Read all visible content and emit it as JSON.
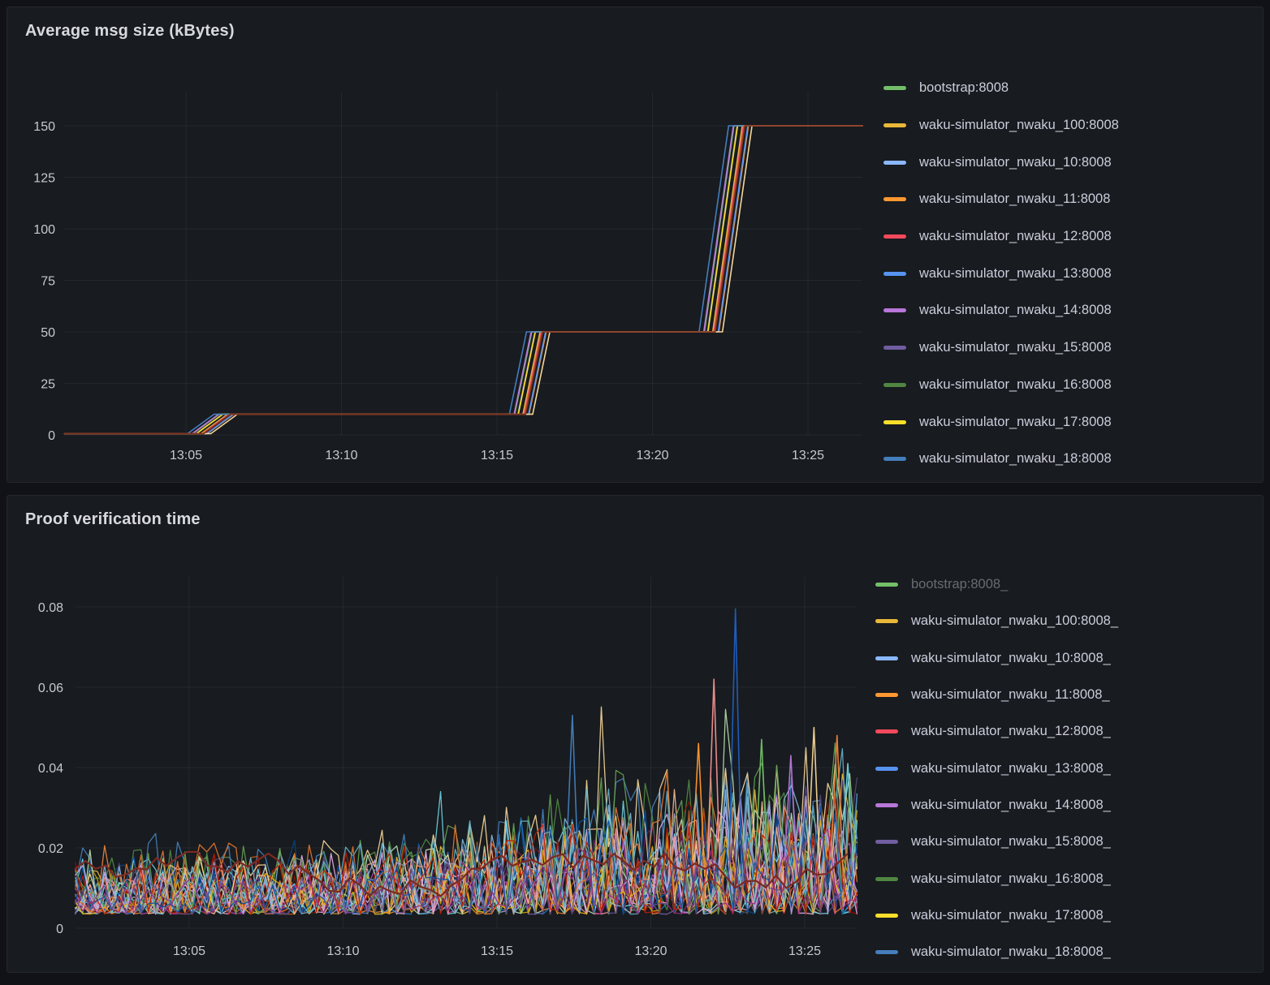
{
  "page": {
    "background": "#111217",
    "panel_background": "#181b1f"
  },
  "chart_data": [
    {
      "type": "line",
      "style": "stepped",
      "title": "Average msg size (kBytes)",
      "x_time_base": "13:00",
      "x_ticks": [
        {
          "label": "13:05",
          "minute": 5
        },
        {
          "label": "13:10",
          "minute": 10
        },
        {
          "label": "13:15",
          "minute": 15
        },
        {
          "label": "13:20",
          "minute": 20
        },
        {
          "label": "13:25",
          "minute": 25
        }
      ],
      "y_ticks": [
        0,
        25,
        50,
        75,
        100,
        125,
        150
      ],
      "ylim": [
        0,
        165
      ],
      "x_range_minutes": [
        1.1,
        26.75
      ],
      "grid": true,
      "legend_position": "right",
      "step_points": {
        "minutes": [
          1.1,
          5.5,
          6.35,
          15.85,
          16.4,
          21.95,
          22.9,
          26.75
        ],
        "values": [
          0.6,
          0.6,
          10,
          10,
          50,
          50,
          150,
          150
        ]
      },
      "series_jitter_minutes": 0.22,
      "jitter_overrides": {
        "#447EBC": -0.45,
        "#F4D598": 0.3,
        "#B877D9": -0.3,
        "#73BF69": -0.28
      },
      "draw_order_colors": [
        "#73BF69",
        "#EAB839",
        "#8AB8FF",
        "#FF9830",
        "#F2495C",
        "#5794F2",
        "#B877D9",
        "#705DA0",
        "#508642",
        "#FADE2A",
        "#447EBC",
        "#F4D598",
        "#C15C17",
        "#7E2F21"
      ],
      "legend": [
        {
          "label": "bootstrap:8008",
          "color": "#73BF69",
          "dimmed": false
        },
        {
          "label": "waku-simulator_nwaku_100:8008",
          "color": "#EAB839",
          "dimmed": false
        },
        {
          "label": "waku-simulator_nwaku_10:8008",
          "color": "#8AB8FF",
          "dimmed": false
        },
        {
          "label": "waku-simulator_nwaku_11:8008",
          "color": "#FF9830",
          "dimmed": false
        },
        {
          "label": "waku-simulator_nwaku_12:8008",
          "color": "#F2495C",
          "dimmed": false
        },
        {
          "label": "waku-simulator_nwaku_13:8008",
          "color": "#5794F2",
          "dimmed": false
        },
        {
          "label": "waku-simulator_nwaku_14:8008",
          "color": "#B877D9",
          "dimmed": false
        },
        {
          "label": "waku-simulator_nwaku_15:8008",
          "color": "#705DA0",
          "dimmed": false
        },
        {
          "label": "waku-simulator_nwaku_16:8008",
          "color": "#508642",
          "dimmed": false
        },
        {
          "label": "waku-simulator_nwaku_17:8008",
          "color": "#FADE2A",
          "dimmed": false
        },
        {
          "label": "waku-simulator_nwaku_18:8008",
          "color": "#447EBC",
          "dimmed": false
        }
      ]
    },
    {
      "type": "line",
      "title": "Proof verification time",
      "x_time_base": "13:00",
      "x_ticks": [
        {
          "label": "13:05",
          "minute": 5
        },
        {
          "label": "13:10",
          "minute": 10
        },
        {
          "label": "13:15",
          "minute": 15
        },
        {
          "label": "13:20",
          "minute": 20
        },
        {
          "label": "13:25",
          "minute": 25
        }
      ],
      "y_ticks": [
        0,
        0.02,
        0.04,
        0.06,
        0.08
      ],
      "ylim": [
        0,
        0.0855
      ],
      "x_range_minutes": [
        1.3,
        26.7
      ],
      "grid": true,
      "legend_position": "right",
      "noise": {
        "seed": 11,
        "series_count": 32,
        "points": 108,
        "y_min": 0.0035,
        "skew": 1.7,
        "amp_min": 0.5,
        "overshoot_p": 0.018,
        "overshoot_gain": 1.3,
        "envelope_minutes": [
          1.3,
          8,
          12,
          15,
          17,
          19,
          21,
          23,
          26.7
        ],
        "envelope_max": [
          0.022,
          0.024,
          0.026,
          0.031,
          0.037,
          0.04,
          0.044,
          0.046,
          0.05
        ]
      },
      "palette": [
        "#7EB26D",
        "#EAB839",
        "#6ED0E0",
        "#EF843C",
        "#E24D42",
        "#1F78C1",
        "#BA43A9",
        "#705DA0",
        "#508642",
        "#CCA300",
        "#447EBC",
        "#C15C17",
        "#890F02",
        "#0A437C",
        "#6D1F62",
        "#584477",
        "#B7DBAB",
        "#F4D598",
        "#70DBED",
        "#F9BA8F",
        "#F29191",
        "#82B5D8",
        "#E5A8E2",
        "#AEA2E0",
        "#629E51",
        "#E5AC0E",
        "#64B0C8",
        "#E0752D",
        "#BF1B00",
        "#0A50A1",
        "#962D82",
        "#614D93"
      ],
      "average_line": {
        "color": "#7B2A22",
        "width": 2.2,
        "seed": 5,
        "min": 0.008,
        "max": 0.019
      },
      "spikes": [
        {
          "minute": 17.45,
          "value": 0.053,
          "color": "#447EBC"
        },
        {
          "minute": 21.55,
          "value": 0.046,
          "color": "#FF9830"
        },
        {
          "minute": 22.05,
          "value": 0.062,
          "color": "#F29191"
        },
        {
          "minute": 22.75,
          "value": 0.0795,
          "color": "#1F60C4"
        },
        {
          "minute": 23.6,
          "value": 0.047,
          "color": "#73BF69"
        },
        {
          "minute": 24.55,
          "value": 0.043,
          "color": "#B877D9"
        },
        {
          "minute": 25.3,
          "value": 0.05,
          "color": "#F4D598"
        },
        {
          "minute": 26.05,
          "value": 0.048,
          "color": "#EF843C"
        },
        {
          "minute": 26.4,
          "value": 0.041,
          "color": "#6ED0E0"
        }
      ],
      "legend": [
        {
          "label": "bootstrap:8008_",
          "color": "#73BF69",
          "dimmed": true
        },
        {
          "label": "waku-simulator_nwaku_100:8008_",
          "color": "#EAB839",
          "dimmed": false
        },
        {
          "label": "waku-simulator_nwaku_10:8008_",
          "color": "#8AB8FF",
          "dimmed": false
        },
        {
          "label": "waku-simulator_nwaku_11:8008_",
          "color": "#FF9830",
          "dimmed": false
        },
        {
          "label": "waku-simulator_nwaku_12:8008_",
          "color": "#F2495C",
          "dimmed": false
        },
        {
          "label": "waku-simulator_nwaku_13:8008_",
          "color": "#5794F2",
          "dimmed": false
        },
        {
          "label": "waku-simulator_nwaku_14:8008_",
          "color": "#B877D9",
          "dimmed": false
        },
        {
          "label": "waku-simulator_nwaku_15:8008_",
          "color": "#705DA0",
          "dimmed": false
        },
        {
          "label": "waku-simulator_nwaku_16:8008_",
          "color": "#508642",
          "dimmed": false
        },
        {
          "label": "waku-simulator_nwaku_17:8008_",
          "color": "#FADE2A",
          "dimmed": false
        },
        {
          "label": "waku-simulator_nwaku_18:8008_",
          "color": "#447EBC",
          "dimmed": false
        }
      ]
    }
  ]
}
